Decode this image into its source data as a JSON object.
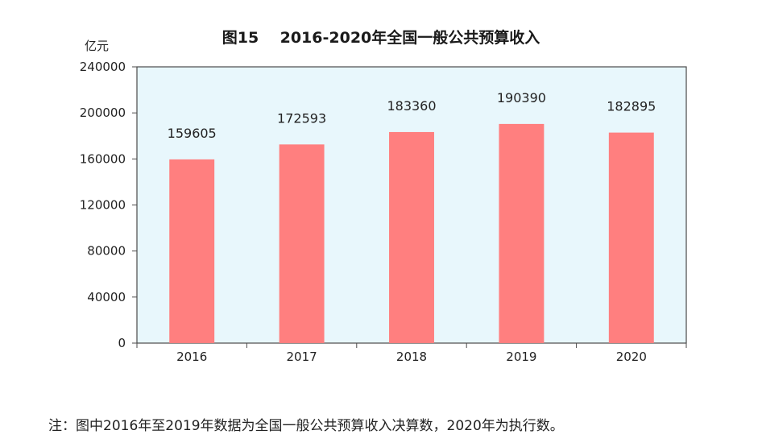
{
  "chart_data": {
    "type": "bar",
    "title": "图15    2016-2020年全国一般公共预算收入",
    "ylabel": "亿元",
    "xlabel": "",
    "categories": [
      "2016",
      "2017",
      "2018",
      "2019",
      "2020"
    ],
    "values": [
      159605,
      172593,
      183360,
      190390,
      182895
    ],
    "value_labels": [
      "159605",
      "172593",
      "183360",
      "190390",
      "182895"
    ],
    "ylim": [
      0,
      240000
    ],
    "yticks": [
      0,
      40000,
      80000,
      120000,
      160000,
      200000,
      240000
    ],
    "ytick_labels": [
      "0",
      "40000",
      "80000",
      "120000",
      "160000",
      "200000",
      "240000"
    ],
    "grid": false,
    "bar_color": "#ff7f7f",
    "plot_background": "#e8f7fc",
    "frame_color": "#4a4a4a"
  },
  "footnote": "注：图中2016年至2019年数据为全国一般公共预算收入决算数，2020年为执行数。"
}
